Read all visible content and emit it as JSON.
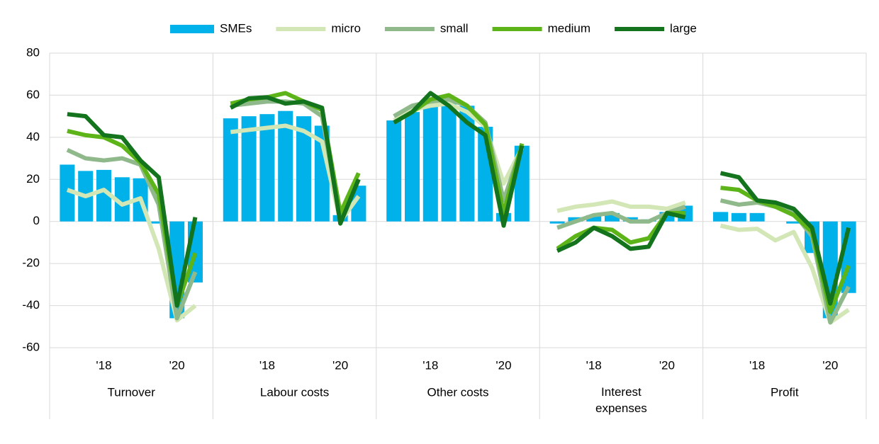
{
  "chart_data": {
    "type": "bar",
    "panels": [
      "Turnover",
      "Labour costs",
      "Other costs",
      "Interest expenses",
      "Profit"
    ],
    "categories": [
      null,
      null,
      "'18",
      null,
      null,
      null,
      "'20",
      null,
      null,
      null,
      "'18",
      null,
      null,
      null,
      "'20",
      null,
      null,
      null,
      "'18",
      null,
      null,
      null,
      "'20",
      null,
      null,
      null,
      "'18",
      null,
      null,
      null,
      "'20",
      null,
      null,
      null,
      "'18",
      null,
      null,
      null,
      "'20",
      null
    ],
    "series": [
      {
        "name": "SMEs",
        "kind": "bar",
        "color": "#00b1ea",
        "values": [
          27,
          24,
          24.5,
          21,
          20.5,
          -1,
          -46,
          -29,
          49,
          50,
          51,
          52.5,
          50,
          45.5,
          3,
          17,
          48,
          52,
          56,
          58,
          55,
          45,
          4,
          36,
          -1,
          2,
          3,
          4,
          2,
          1,
          4.5,
          7.5,
          4.5,
          4,
          4,
          0,
          -1,
          -15,
          -46,
          -34
        ]
      },
      {
        "name": "micro",
        "kind": "line",
        "color": "#d3e6b5",
        "values": [
          15,
          12,
          15,
          8,
          11,
          -13,
          -47,
          -40,
          42.5,
          43.5,
          44.5,
          45.5,
          43,
          38,
          0,
          12,
          48,
          53,
          55,
          56,
          52,
          45,
          18,
          35,
          5,
          7,
          8,
          9.5,
          7,
          7,
          6,
          9,
          -2,
          -4,
          -3.5,
          -9,
          -5,
          -22,
          -48,
          -42
        ]
      },
      {
        "name": "small",
        "kind": "line",
        "color": "#8fb98a",
        "values": [
          34,
          30,
          29,
          30,
          27,
          8,
          -46,
          -24,
          55,
          56,
          57,
          57,
          56,
          50,
          1,
          20,
          50,
          55,
          57,
          58,
          55,
          47,
          10,
          36,
          -3,
          0,
          3,
          4,
          0,
          0,
          4,
          7,
          10,
          8,
          9,
          7,
          4,
          -7,
          -48,
          -31
        ]
      },
      {
        "name": "medium",
        "kind": "line",
        "color": "#5cb418",
        "values": [
          43,
          41,
          40,
          36,
          28,
          13,
          -40,
          -15,
          56,
          58,
          59,
          61,
          57,
          53,
          4,
          23,
          47,
          52,
          58,
          60,
          55,
          46,
          4,
          37,
          -13,
          -7,
          -3,
          -4,
          -10,
          -8,
          4,
          4,
          16,
          15,
          10,
          7,
          3,
          -5,
          -43,
          -21
        ]
      },
      {
        "name": "large",
        "kind": "line",
        "color": "#13741d",
        "values": [
          51,
          50,
          41,
          40,
          29,
          21,
          -40,
          2,
          54,
          58.5,
          59,
          56,
          57,
          54,
          -1,
          20,
          47,
          52,
          61,
          55,
          47,
          41,
          -2,
          36,
          -14,
          -10,
          -3,
          -7,
          -13,
          -12,
          4,
          2,
          23,
          21,
          10,
          9,
          6,
          -3,
          -39,
          -3
        ]
      }
    ],
    "ylim": [
      -60,
      80
    ],
    "yticks": [
      -60,
      -40,
      -20,
      0,
      20,
      40,
      60,
      80
    ],
    "grid": true
  }
}
